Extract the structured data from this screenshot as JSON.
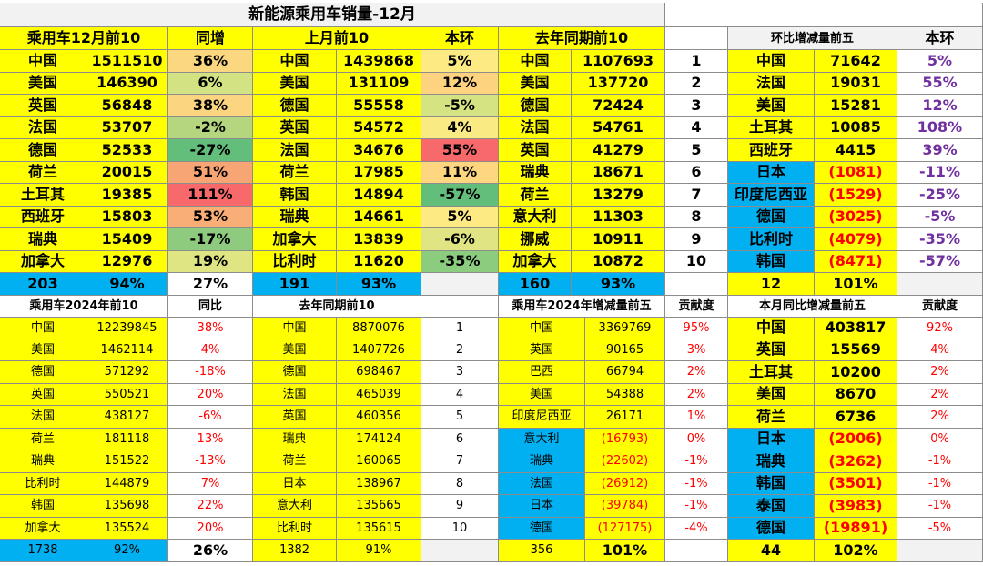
{
  "title": "新能源乘用车销量-12月",
  "dec": {
    "headers": [
      "乘用车12月前10",
      "同增",
      "上月前10",
      "本环",
      "去年同期前10"
    ],
    "rows": [
      {
        "c1": "中国",
        "v1": "1511510",
        "yoy": "36%",
        "c2": "中国",
        "v2": "1439868",
        "mom": "5%",
        "c3": "中国",
        "v3": "1107693",
        "rank": "1"
      },
      {
        "c1": "美国",
        "v1": "146390",
        "yoy": "6%",
        "c2": "美国",
        "v2": "131109",
        "mom": "12%",
        "c3": "美国",
        "v3": "137720",
        "rank": "2"
      },
      {
        "c1": "英国",
        "v1": "56848",
        "yoy": "38%",
        "c2": "德国",
        "v2": "55558",
        "mom": "-5%",
        "c3": "德国",
        "v3": "72424",
        "rank": "3"
      },
      {
        "c1": "法国",
        "v1": "53707",
        "yoy": "-2%",
        "c2": "英国",
        "v2": "54572",
        "mom": "4%",
        "c3": "法国",
        "v3": "54761",
        "rank": "4"
      },
      {
        "c1": "德国",
        "v1": "52533",
        "yoy": "-27%",
        "c2": "法国",
        "v2": "34676",
        "mom": "55%",
        "c3": "英国",
        "v3": "41279",
        "rank": "5"
      },
      {
        "c1": "荷兰",
        "v1": "20015",
        "yoy": "51%",
        "c2": "荷兰",
        "v2": "17985",
        "mom": "11%",
        "c3": "瑞典",
        "v3": "18671",
        "rank": "6"
      },
      {
        "c1": "土耳其",
        "v1": "19385",
        "yoy": "111%",
        "c2": "韩国",
        "v2": "14894",
        "mom": "-57%",
        "c3": "荷兰",
        "v3": "13279",
        "rank": "7"
      },
      {
        "c1": "西班牙",
        "v1": "15803",
        "yoy": "53%",
        "c2": "瑞典",
        "v2": "14661",
        "mom": "5%",
        "c3": "意大利",
        "v3": "11303",
        "rank": "8"
      },
      {
        "c1": "瑞典",
        "v1": "15409",
        "yoy": "-17%",
        "c2": "加拿大",
        "v2": "13839",
        "mom": "-6%",
        "c3": "挪威",
        "v3": "10911",
        "rank": "9"
      },
      {
        "c1": "加拿大",
        "v1": "12976",
        "yoy": "19%",
        "c2": "比利时",
        "v2": "11620",
        "mom": "-35%",
        "c3": "加拿大",
        "v3": "10872",
        "rank": "10"
      }
    ],
    "totals": {
      "t1": "203",
      "t2": "94%",
      "t3": "27%",
      "t4": "191",
      "t5": "93%",
      "t6": "160",
      "t7": "93%"
    }
  },
  "mom_top5": {
    "headers": [
      "环比增减量前五",
      "本环"
    ],
    "rows": [
      {
        "c": "中国",
        "v": "71642",
        "p": "5%"
      },
      {
        "c": "法国",
        "v": "19031",
        "p": "55%"
      },
      {
        "c": "美国",
        "v": "15281",
        "p": "12%"
      },
      {
        "c": "土耳其",
        "v": "10085",
        "p": "108%"
      },
      {
        "c": "西班牙",
        "v": "4415",
        "p": "39%"
      },
      {
        "c": "日本",
        "v": "(1081)",
        "p": "-11%"
      },
      {
        "c": "印度尼西亚",
        "v": "(1529)",
        "p": "-25%"
      },
      {
        "c": "德国",
        "v": "(3025)",
        "p": "-5%"
      },
      {
        "c": "比利时",
        "v": "(4079)",
        "p": "-35%"
      },
      {
        "c": "韩国",
        "v": "(8471)",
        "p": "-57%"
      }
    ],
    "totals": {
      "a": "12",
      "b": "101%"
    }
  },
  "year": {
    "headers": [
      "乘用车2024年前10",
      "同比",
      "去年同期前10",
      "乘用车2024年增减量前五",
      "贡献度"
    ],
    "rows": [
      {
        "c1": "中国",
        "v1": "12239845",
        "yoy": "38%",
        "c2": "中国",
        "v2": "8870076",
        "rank": "1",
        "c3": "中国",
        "v3": "3369769",
        "d": "95%"
      },
      {
        "c1": "美国",
        "v1": "1462114",
        "yoy": "4%",
        "c2": "美国",
        "v2": "1407726",
        "rank": "2",
        "c3": "英国",
        "v3": "90165",
        "d": "3%"
      },
      {
        "c1": "德国",
        "v1": "571292",
        "yoy": "-18%",
        "c2": "德国",
        "v2": "698467",
        "rank": "3",
        "c3": "巴西",
        "v3": "66794",
        "d": "2%"
      },
      {
        "c1": "英国",
        "v1": "550521",
        "yoy": "20%",
        "c2": "法国",
        "v2": "465039",
        "rank": "4",
        "c3": "美国",
        "v3": "54388",
        "d": "2%"
      },
      {
        "c1": "法国",
        "v1": "438127",
        "yoy": "-6%",
        "c2": "英国",
        "v2": "460356",
        "rank": "5",
        "c3": "印度尼西亚",
        "v3": "26171",
        "d": "1%"
      },
      {
        "c1": "荷兰",
        "v1": "181118",
        "yoy": "13%",
        "c2": "瑞典",
        "v2": "174124",
        "rank": "6",
        "c3": "意大利",
        "v3": "(16793)",
        "d": "0%"
      },
      {
        "c1": "瑞典",
        "v1": "151522",
        "yoy": "-13%",
        "c2": "荷兰",
        "v2": "160065",
        "rank": "7",
        "c3": "瑞典",
        "v3": "(22602)",
        "d": "-1%"
      },
      {
        "c1": "比利时",
        "v1": "144879",
        "yoy": "7%",
        "c2": "日本",
        "v2": "138967",
        "rank": "8",
        "c3": "法国",
        "v3": "(26912)",
        "d": "-1%"
      },
      {
        "c1": "韩国",
        "v1": "135698",
        "yoy": "22%",
        "c2": "意大利",
        "v2": "135665",
        "rank": "9",
        "c3": "日本",
        "v3": "(39784)",
        "d": "-1%"
      },
      {
        "c1": "加拿大",
        "v1": "135524",
        "yoy": "20%",
        "c2": "比利时",
        "v2": "135615",
        "rank": "10",
        "c3": "德国",
        "v3": "(127175)",
        "d": "-4%"
      }
    ],
    "totals": {
      "t1": "1738",
      "t2": "92%",
      "t3": "26%",
      "t4": "1382",
      "t5": "91%",
      "t6": "356",
      "t7": "101%"
    }
  },
  "yoy_top5": {
    "headers": [
      "本月同比增减量前五",
      "贡献度"
    ],
    "rows": [
      {
        "c": "中国",
        "v": "403817",
        "p": "92%"
      },
      {
        "c": "英国",
        "v": "15569",
        "p": "4%"
      },
      {
        "c": "土耳其",
        "v": "10200",
        "p": "2%"
      },
      {
        "c": "美国",
        "v": "8670",
        "p": "2%"
      },
      {
        "c": "荷兰",
        "v": "6736",
        "p": "2%"
      },
      {
        "c": "日本",
        "v": "(2006)",
        "p": "0%"
      },
      {
        "c": "瑞典",
        "v": "(3262)",
        "p": "-1%"
      },
      {
        "c": "韩国",
        "v": "(3501)",
        "p": "-1%"
      },
      {
        "c": "泰国",
        "v": "(3983)",
        "p": "-1%"
      },
      {
        "c": "德国",
        "v": "(19891)",
        "p": "-5%"
      }
    ],
    "totals": {
      "a": "44",
      "b": "102%"
    }
  },
  "colors": {
    "yellow": "#ffff00",
    "blue": "#00b0f0",
    "red_text": "#ff0000",
    "purple_text": "#7030a0",
    "heat": {
      "yoy": [
        "#fbd77f",
        "#d3e282",
        "#fbd57f",
        "#b5d67f",
        "#63be7b",
        "#f8a576",
        "#f8696b",
        "#f9ae78",
        "#8fcb7f",
        "#dfe583"
      ],
      "mom": [
        "#feea83",
        "#fed380",
        "#d6e382",
        "#f9ea84",
        "#f8696b",
        "#fed680",
        "#63be7b",
        "#feea83",
        "#e0e483",
        "#8ccc7e"
      ]
    }
  }
}
